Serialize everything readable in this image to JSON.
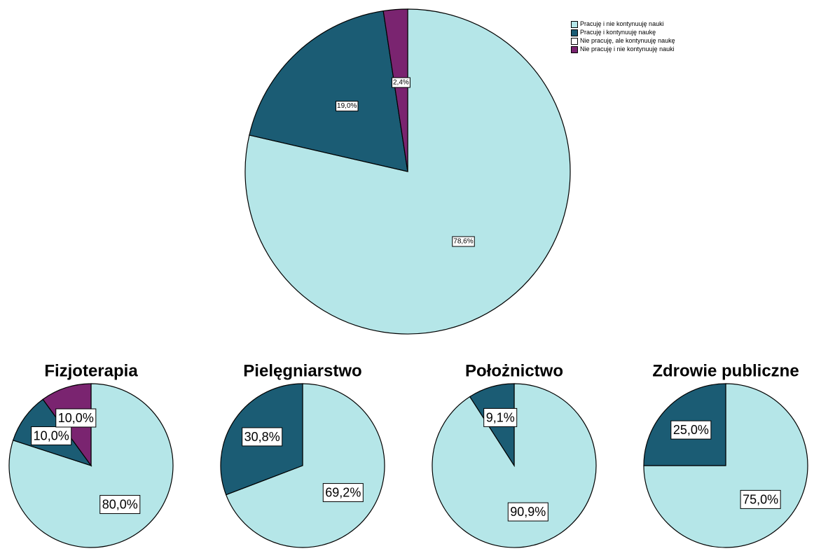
{
  "chart_data": [
    {
      "type": "pie",
      "categories": [
        "Pracuję i nie kontynuuję nauki",
        "Pracuję i kontynuuję naukę",
        "Nie pracuję, ale kontynuuję naukę",
        "Nie pracuję i nie kontynuuję nauki"
      ],
      "colors": [
        "#b5e6e8",
        "#1b5c74",
        "#ffffff",
        "#7a2470"
      ],
      "values": [
        78.6,
        19.0,
        0,
        2.4
      ],
      "value_labels": [
        "78,6%",
        "19,0%",
        null,
        "2,4%"
      ],
      "legend": "top-right"
    },
    {
      "type": "pie",
      "title": "Fizjoterapia",
      "colors": [
        "#b5e6e8",
        "#1b5c74",
        "#ffffff",
        "#7a2470"
      ],
      "values": [
        80.0,
        10.0,
        0,
        10.0
      ],
      "value_labels": [
        "80,0%",
        "10,0%",
        null,
        "10,0%"
      ]
    },
    {
      "type": "pie",
      "title": "Pielęgniarstwo",
      "colors": [
        "#b5e6e8",
        "#1b5c74",
        "#ffffff",
        "#7a2470"
      ],
      "values": [
        69.2,
        30.8,
        0,
        0
      ],
      "value_labels": [
        "69,2%",
        "30,8%",
        null,
        null
      ]
    },
    {
      "type": "pie",
      "title": "Położnictwo",
      "colors": [
        "#b5e6e8",
        "#1b5c74",
        "#ffffff",
        "#7a2470"
      ],
      "values": [
        90.9,
        9.1,
        0,
        0
      ],
      "value_labels": [
        "90,9%",
        "9,1%",
        null,
        null
      ]
    },
    {
      "type": "pie",
      "title": "Zdrowie publiczne",
      "colors": [
        "#b5e6e8",
        "#1b5c74",
        "#ffffff",
        "#7a2470"
      ],
      "values": [
        75.0,
        25.0,
        0,
        0
      ],
      "value_labels": [
        "75,0%",
        "25,0%",
        null,
        null
      ]
    }
  ]
}
